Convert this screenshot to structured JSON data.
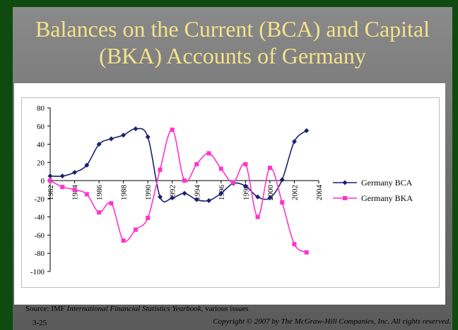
{
  "slide": {
    "title_line1": "Balances on the Current (BCA) and Capital",
    "title_line2": "(BKA) Accounts of Germany",
    "source_prefix": "Source: IMF ",
    "source_italic": "International Financial Statistics Yearbook,",
    "source_suffix": " various issues",
    "slide_number": "3-25",
    "copyright": "Copyright © 2007 by The McGraw-Hill Companies, Inc. All rights reserved."
  },
  "colors": {
    "bca": "#1a1f6e",
    "bka": "#ff33cc",
    "title": "#f5e28a"
  },
  "chart_data": {
    "type": "line",
    "title": "",
    "xlabel": "",
    "ylabel": "",
    "xlim": [
      1982,
      2004
    ],
    "ylim": [
      -100,
      80
    ],
    "x_ticks": [
      "1982",
      "1984",
      "1986",
      "1988",
      "1990",
      "1992",
      "1994",
      "1996",
      "1998",
      "2000",
      "2002",
      "2004"
    ],
    "y_ticks": [
      "80",
      "60",
      "40",
      "20",
      "0",
      "-20",
      "-40",
      "-60",
      "-80",
      "-100"
    ],
    "legend_position": "right",
    "grid": false,
    "series": [
      {
        "name": "Germany BCA",
        "marker": "diamond",
        "x": [
          1982,
          1983,
          1984,
          1985,
          1986,
          1987,
          1988,
          1989,
          1990,
          1991,
          1992,
          1993,
          1994,
          1995,
          1996,
          1997,
          1998,
          1999,
          2000,
          2001,
          2002,
          2003
        ],
        "values": [
          5,
          5,
          9,
          17,
          40,
          46,
          50,
          57,
          48,
          -18,
          -19,
          -14,
          -21,
          -22,
          -14,
          -3,
          -6,
          -18,
          -19,
          1,
          43,
          55
        ]
      },
      {
        "name": "Germany BKA",
        "marker": "square",
        "x": [
          1982,
          1983,
          1984,
          1985,
          1986,
          1987,
          1988,
          1989,
          1990,
          1991,
          1992,
          1993,
          1994,
          1995,
          1996,
          1997,
          1998,
          1999,
          2000,
          2001,
          2002,
          2003
        ],
        "values": [
          0,
          -7,
          -10,
          -15,
          -35,
          -25,
          -66,
          -54,
          -41,
          12,
          56,
          0,
          18,
          30,
          13,
          -2,
          18,
          -40,
          14,
          -24,
          -70,
          -79
        ]
      }
    ]
  }
}
